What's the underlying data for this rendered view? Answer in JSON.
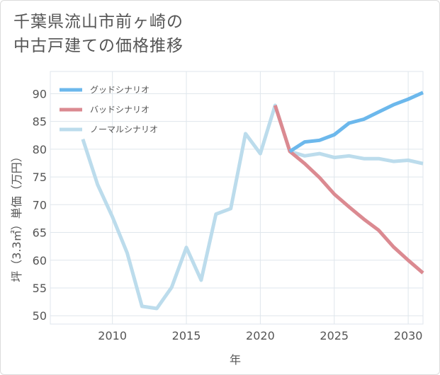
{
  "title_lines": [
    "千葉県流山市前ヶ崎の",
    "中古戸建ての価格推移"
  ],
  "chart_data": {
    "type": "line",
    "title": "千葉県流山市前ヶ崎の中古戸建ての価格推移",
    "xlabel": "年",
    "ylabel": "坪（3.3㎡）単価（万円）",
    "xlim": [
      2005.8,
      2031
    ],
    "ylim": [
      48.5,
      94
    ],
    "xticks": [
      2010,
      2015,
      2020,
      2025,
      2030
    ],
    "yticks": [
      50,
      55,
      60,
      65,
      70,
      75,
      80,
      85,
      90
    ],
    "legend_position": "top-left",
    "series": [
      {
        "name": "グッドシナリオ",
        "color": "#6cb8ec",
        "x": [
          2022,
          2023,
          2024,
          2025,
          2026,
          2027,
          2028,
          2029,
          2030,
          2031
        ],
        "values": [
          79.6,
          81.3,
          81.6,
          82.6,
          84.7,
          85.4,
          86.7,
          88.0,
          89.0,
          90.2
        ]
      },
      {
        "name": "バッドシナリオ",
        "color": "#db8a91",
        "x": [
          2021,
          2022,
          2023,
          2024,
          2025,
          2026,
          2027,
          2028,
          2029,
          2030,
          2031
        ],
        "values": [
          87.9,
          79.6,
          77.4,
          74.9,
          71.9,
          69.6,
          67.4,
          65.4,
          62.4,
          60.0,
          57.7
        ]
      },
      {
        "name": "ノーマルシナリオ",
        "color": "#bcdcec",
        "x": [
          2008,
          2009,
          2010,
          2011,
          2012,
          2013,
          2014,
          2015,
          2016,
          2017,
          2018,
          2019,
          2020,
          2021,
          2022,
          2023,
          2024,
          2025,
          2026,
          2027,
          2028,
          2029,
          2030,
          2031
        ],
        "values": [
          81.8,
          73.6,
          67.8,
          61.3,
          51.7,
          51.3,
          55.1,
          62.3,
          56.4,
          68.3,
          69.3,
          82.8,
          79.2,
          87.9,
          79.6,
          78.8,
          79.2,
          78.5,
          78.8,
          78.3,
          78.3,
          77.8,
          78.0,
          77.4
        ]
      }
    ]
  }
}
